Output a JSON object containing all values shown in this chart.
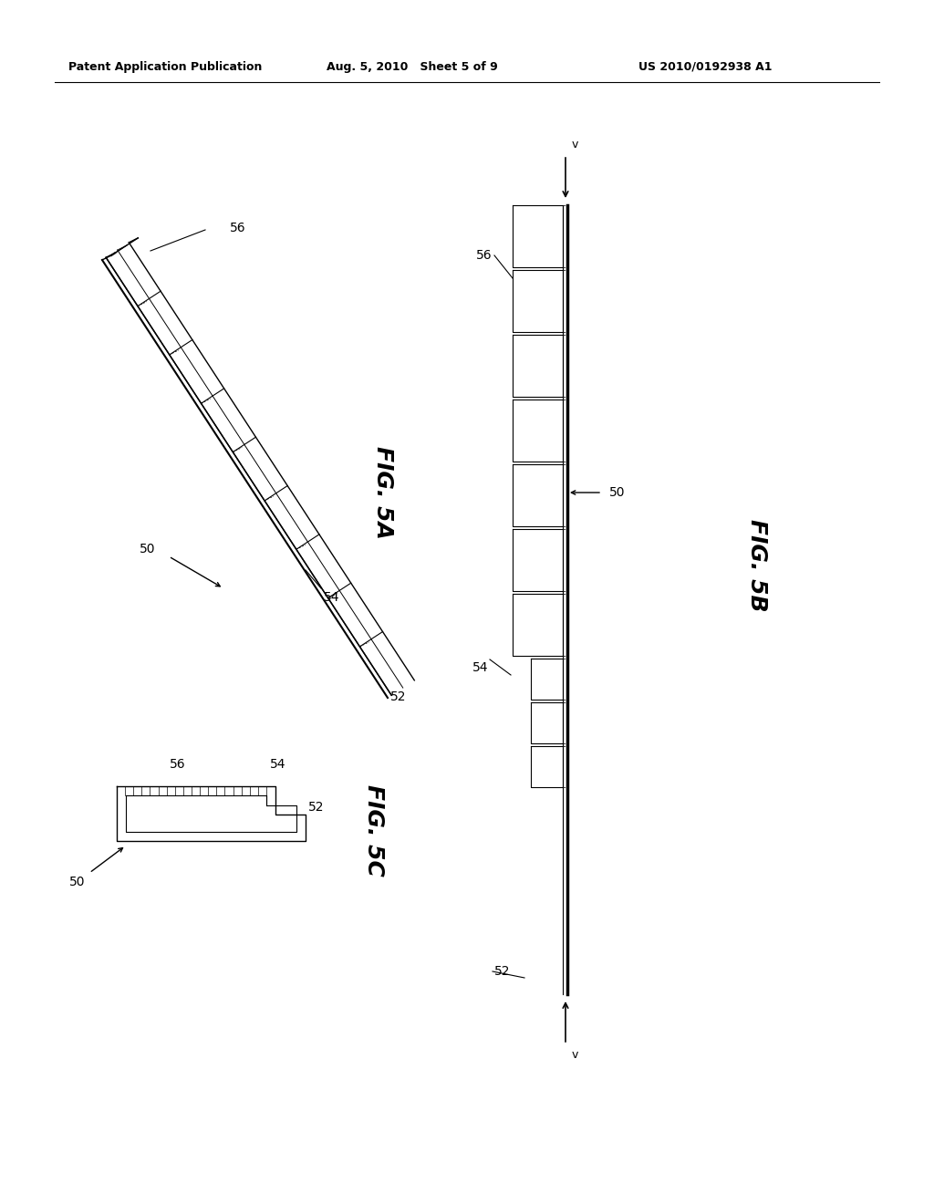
{
  "bg_color": "#ffffff",
  "line_color": "#000000",
  "header_left": "Patent Application Publication",
  "header_mid": "Aug. 5, 2010   Sheet 5 of 9",
  "header_right": "US 2010/0192938 A1",
  "fig5a_label": "FIG. 5A",
  "fig5b_label": "FIG. 5B",
  "fig5c_label": "FIG. 5C",
  "ref_50": "50",
  "ref_52": "52",
  "ref_54": "54",
  "ref_56": "56",
  "ref_v": "v"
}
